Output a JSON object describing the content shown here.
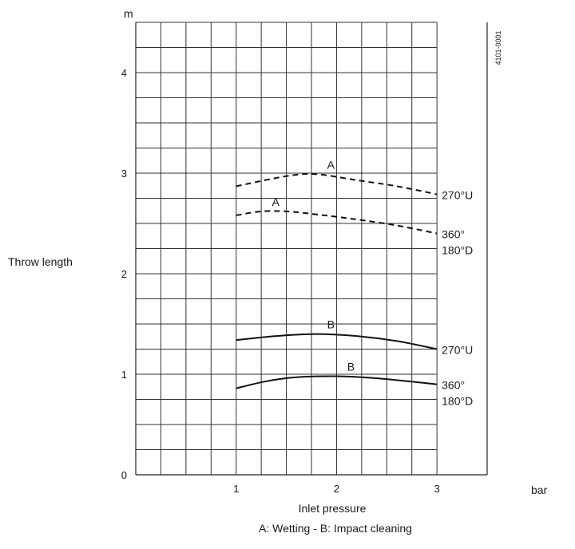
{
  "chart_data": {
    "type": "line",
    "ylabel": "Throw length",
    "yunit": "m",
    "xlabel": "Inlet pressure",
    "xunit": "bar",
    "caption": "A: Wetting - B: Impact cleaning",
    "code": "4101-0001",
    "xlim": [
      0,
      3.5
    ],
    "ylim": [
      0,
      4.5
    ],
    "xticks": [
      1,
      2,
      3
    ],
    "yticks": [
      0,
      1,
      2,
      3,
      4
    ],
    "grid": true,
    "series": [
      {
        "letter": "A",
        "line_style": "dashed",
        "end_label": [
          "270°U"
        ],
        "points": [
          [
            1,
            2.87
          ],
          [
            1.5,
            2.97
          ],
          [
            1.8,
            2.99
          ],
          [
            2.2,
            2.93
          ],
          [
            2.6,
            2.87
          ],
          [
            3,
            2.79
          ]
        ]
      },
      {
        "letter": "A",
        "line_style": "dashed",
        "end_label": [
          "360°",
          "180°D"
        ],
        "points": [
          [
            1,
            2.58
          ],
          [
            1.25,
            2.62
          ],
          [
            1.5,
            2.62
          ],
          [
            1.8,
            2.59
          ],
          [
            2.2,
            2.54
          ],
          [
            2.6,
            2.48
          ],
          [
            3,
            2.4
          ]
        ]
      },
      {
        "letter": "B",
        "line_style": "solid",
        "end_label": [
          "270°U"
        ],
        "points": [
          [
            1,
            1.34
          ],
          [
            1.4,
            1.38
          ],
          [
            1.8,
            1.4
          ],
          [
            2.2,
            1.38
          ],
          [
            2.6,
            1.33
          ],
          [
            3,
            1.25
          ]
        ]
      },
      {
        "letter": "B",
        "line_style": "solid",
        "end_label": [
          "360°",
          "180°D"
        ],
        "points": [
          [
            1,
            0.86
          ],
          [
            1.3,
            0.93
          ],
          [
            1.6,
            0.97
          ],
          [
            2,
            0.98
          ],
          [
            2.4,
            0.96
          ],
          [
            3,
            0.9
          ]
        ]
      }
    ]
  }
}
